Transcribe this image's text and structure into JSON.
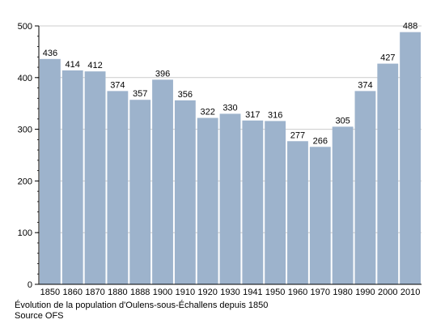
{
  "chart_data": {
    "type": "bar",
    "categories": [
      "1850",
      "1860",
      "1870",
      "1880",
      "1888",
      "1900",
      "1910",
      "1920",
      "1930",
      "1941",
      "1950",
      "1960",
      "1970",
      "1980",
      "1990",
      "2000",
      "2010"
    ],
    "values": [
      436,
      414,
      412,
      374,
      357,
      396,
      356,
      322,
      330,
      317,
      316,
      277,
      266,
      305,
      374,
      427,
      488
    ],
    "data_labels": [
      "436",
      "414",
      "412",
      "374",
      "357",
      "396",
      "356",
      "322",
      "330",
      "317",
      "316",
      "277",
      "266",
      "305",
      "374",
      "427",
      "488"
    ],
    "y_ticks": [
      "0",
      "100",
      "200",
      "300",
      "400",
      "500"
    ],
    "ylim": [
      0,
      500
    ],
    "grid": true,
    "colors": {
      "bar": "#9db3cc",
      "gridline": "#cccccc",
      "axis": "#000000"
    }
  },
  "caption": {
    "line1": "Évolution de la population d'Oulens-sous-Échallens depuis 1850",
    "line2": "Source OFS"
  }
}
